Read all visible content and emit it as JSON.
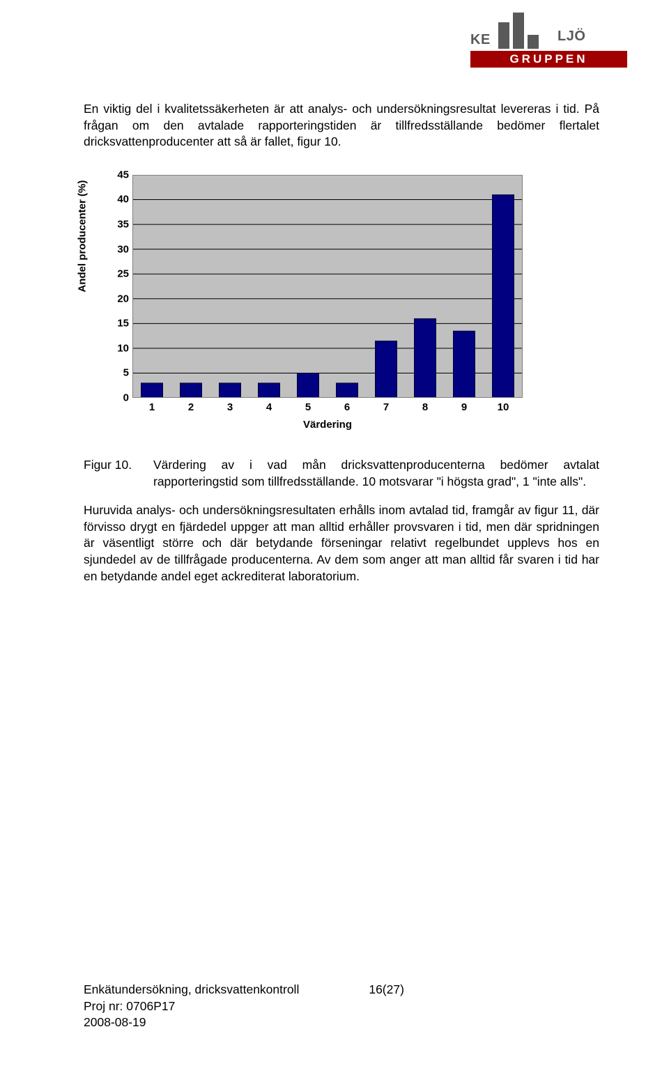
{
  "logo": {
    "ke": "KE",
    "ljo": "LJÖ",
    "bottom": "GRUPPEN"
  },
  "intro_paragraph": "En viktig del i kvalitetssäkerheten är att analys- och undersökningsresultat levereras i tid. På frågan om den avtalade rapporteringstiden är tillfredsställande bedömer flertalet dricksvattenproducenter att så är fallet, figur 10.",
  "chart": {
    "type": "bar",
    "categories": [
      "1",
      "2",
      "3",
      "4",
      "5",
      "6",
      "7",
      "8",
      "9",
      "10"
    ],
    "values": [
      3,
      3,
      3,
      3,
      5,
      3,
      11.5,
      16,
      13.5,
      41
    ],
    "ylim": [
      0,
      45
    ],
    "ytick_step": 5,
    "yticks": [
      "0",
      "5",
      "10",
      "15",
      "20",
      "25",
      "30",
      "35",
      "40",
      "45"
    ],
    "bar_color": "#000080",
    "background_color": "#c0c0c0",
    "grid_color": "#000000",
    "border_color": "#808080",
    "tick_color": "#000000",
    "bar_width_ratio": 0.56,
    "xlabel": "Värdering",
    "ylabel": "Andel producenter (%)",
    "label_fontsize": 15
  },
  "caption": {
    "label": "Figur 10.",
    "text": "Värdering av i vad mån dricksvattenproducenterna bedömer avtalat rapporteringstid som tillfredsställande. 10 motsvarar \"i högsta grad\", 1 \"inte alls\"."
  },
  "para2": "Huruvida analys- och undersökningsresultaten erhålls inom avtalad tid, framgår av figur 11, där förvisso drygt en fjärdedel uppger att man alltid erhåller provsvaren i tid, men där spridningen är väsentligt större och där betydande förseningar relativt regelbundet upplevs hos en sjundedel av de tillfrågade producenterna. Av dem som anger att man alltid får svaren i tid har en betydande andel eget ackrediterat laboratorium.",
  "footer": {
    "title": "Enkätundersökning, dricksvattenkontroll",
    "page": "16(27)",
    "proj": "Proj nr: 0706P17",
    "date": "2008-08-19"
  }
}
